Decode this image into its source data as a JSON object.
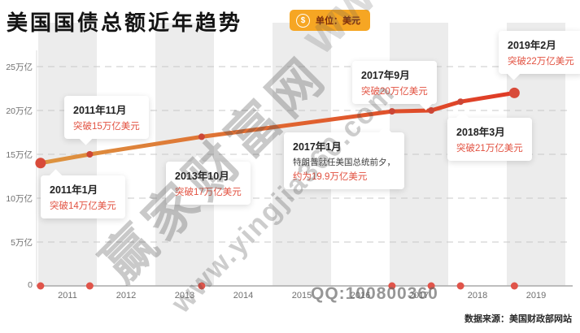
{
  "title": "美国国债总额近年趋势",
  "unit_badge": {
    "icon": "coin-icon",
    "icon_glyph": "$",
    "label": "单位：美元"
  },
  "watermark": {
    "brand": "赢家财富网",
    "url": "www.yingjia360.com",
    "qq": "QQ:100800360"
  },
  "footer": {
    "source": "数据来源：美国财政部网站"
  },
  "chart_data": {
    "type": "line",
    "title": "美国国债总额近年趋势",
    "unit": "美元",
    "x_years": [
      2011.04,
      2011.88,
      2013.79,
      2017.04,
      2017.71,
      2018.21,
      2019.13
    ],
    "values_trillion_usd": [
      14,
      15,
      17,
      19.9,
      20,
      21,
      22
    ],
    "points": [
      {
        "date": "2011年1月",
        "label": "突破14万亿美元",
        "value": 14
      },
      {
        "date": "2011年11月",
        "label": "突破15万亿美元",
        "value": 15
      },
      {
        "date": "2013年10月",
        "label": "突破17万亿美元",
        "value": 17
      },
      {
        "date": "2017年1月",
        "desc": "特朗普就任美国总统前夕，",
        "label": "约为19.9万亿美元",
        "value": 19.9
      },
      {
        "date": "2017年9月",
        "label": "突破20万亿美元",
        "value": 20
      },
      {
        "date": "2018年3月",
        "label": "突破21万亿美元",
        "value": 21
      },
      {
        "date": "2019年2月",
        "label": "突破22万亿美元",
        "value": 22
      }
    ],
    "yticks": [
      "25万亿",
      "20万亿",
      "15万亿",
      "10万亿",
      "5万亿",
      "0"
    ],
    "xticks": [
      "2011",
      "2012",
      "2013",
      "2014",
      "2015",
      "2016",
      "2017",
      "2018",
      "2019"
    ],
    "ylim": [
      0,
      25
    ],
    "grid": "dashed-horizontal",
    "legend": "none",
    "line_gradient": [
      "#dd9540",
      "#df3a26"
    ],
    "marker_color": "#cc4636",
    "endpoint_color": "#d84b3a",
    "baseline_dot_color": "#e0544a",
    "stripe_color": "#ececec"
  }
}
